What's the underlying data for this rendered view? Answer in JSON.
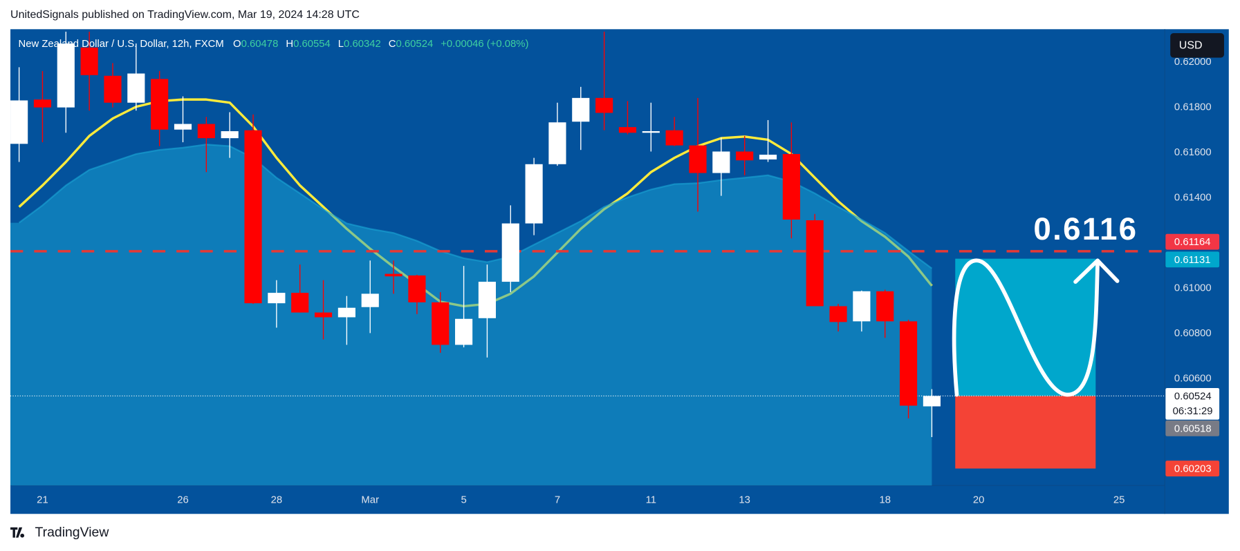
{
  "chart_data": {
    "type": "candlestick",
    "publisher_line": "UnitedSignals published on TradingView.com, Mar 19, 2024 14:28 UTC",
    "symbol": "New Zealand Dollar / U.S. Dollar, 12h, FXCM",
    "ohlc_keys": [
      "O",
      "H",
      "L",
      "C"
    ],
    "change": "+0.00046 (+0.08%)",
    "currency": "USD",
    "brand": "TradingView",
    "annotation": "0.6116",
    "countdown": "06:31:29",
    "categories": [
      null,
      "21",
      null,
      null,
      null,
      null,
      null,
      "26",
      null,
      null,
      null,
      "28",
      null,
      null,
      null,
      "Mar",
      null,
      null,
      null,
      "5",
      null,
      null,
      null,
      "7",
      null,
      null,
      null,
      "11",
      null,
      null,
      null,
      "13",
      null,
      null,
      null,
      null,
      null,
      "18",
      null,
      null,
      null,
      "20",
      null,
      null,
      null,
      null,
      null,
      "25",
      null,
      null
    ],
    "open": [
      0.61639,
      0.61835,
      0.618,
      0.62065,
      0.6194,
      0.61821,
      0.61926,
      0.61702,
      0.61727,
      0.61664,
      0.61699,
      0.60934,
      0.6098,
      0.60893,
      0.60872,
      0.60917,
      0.61064,
      0.61057,
      0.60938,
      0.6075,
      0.60868,
      0.61029,
      0.61287,
      0.61549,
      0.61737,
      0.61842,
      0.61713,
      0.61688,
      0.61699,
      0.61632,
      0.6151,
      0.61605,
      0.6157,
      0.61594,
      0.61301,
      0.60921,
      0.60854,
      0.60987,
      0.60854,
      0.60478,
      null,
      null,
      null,
      null,
      null,
      null,
      null,
      null,
      null,
      null
    ],
    "high": [
      0.61978,
      0.61961,
      0.62135,
      0.62135,
      0.61996,
      0.62083,
      0.61961,
      0.61849,
      0.61758,
      0.61779,
      0.61769,
      0.61036,
      0.61105,
      0.61036,
      0.60966,
      0.61123,
      0.61123,
      0.6106,
      0.60983,
      0.61099,
      0.61105,
      0.61367,
      0.61577,
      0.61821,
      0.61891,
      0.62135,
      0.61828,
      0.61821,
      0.61758,
      0.61842,
      0.61667,
      0.61674,
      0.61744,
      0.61734,
      0.61329,
      0.60931,
      0.6099,
      0.60994,
      0.60861,
      0.60554,
      null,
      null,
      null,
      null,
      null,
      null,
      null,
      null,
      null,
      null
    ],
    "low": [
      0.61559,
      0.61646,
      0.61688,
      0.61786,
      0.618,
      0.61786,
      0.61629,
      0.61646,
      0.61514,
      0.61577,
      0.60931,
      0.60826,
      0.60893,
      0.60774,
      0.6075,
      0.60802,
      0.60976,
      0.60886,
      0.60715,
      0.60739,
      0.60694,
      0.60983,
      0.61235,
      0.61542,
      0.61612,
      0.61699,
      0.61681,
      0.61605,
      0.61629,
      0.61339,
      0.61409,
      0.615,
      0.61559,
      0.61221,
      0.60921,
      0.60809,
      0.60809,
      0.60781,
      0.60425,
      0.60342,
      null,
      null,
      null,
      null,
      null,
      null,
      null,
      null,
      null,
      null
    ],
    "close": [
      0.61831,
      0.618,
      0.62083,
      0.61943,
      0.61821,
      0.6195,
      0.61702,
      0.61727,
      0.61664,
      0.61695,
      0.60934,
      0.6098,
      0.60893,
      0.60872,
      0.60914,
      0.60976,
      0.61053,
      0.60938,
      0.6075,
      0.60865,
      0.61029,
      0.61287,
      0.61549,
      0.61734,
      0.61842,
      0.61776,
      0.61688,
      0.61695,
      0.61632,
      0.6151,
      0.61605,
      0.61566,
      0.61591,
      0.61304,
      0.60921,
      0.60851,
      0.60987,
      0.60854,
      0.60481,
      0.60524,
      null,
      null,
      null,
      null,
      null,
      null,
      null,
      null,
      null,
      null
    ],
    "up_color": "#ffffff",
    "down_color": "#ff0000",
    "series": [
      {
        "style": "line",
        "color": "#ffeb3b",
        "values": [
          0.6136,
          0.61455,
          0.61559,
          0.61674,
          0.61751,
          0.61803,
          0.61828,
          0.61835,
          0.61835,
          0.61821,
          0.61716,
          0.61577,
          0.61455,
          0.6136,
          0.61263,
          0.61175,
          0.61095,
          0.61018,
          0.60941,
          0.60921,
          0.60931,
          0.60976,
          0.61053,
          0.61158,
          0.61263,
          0.6135,
          0.6142,
          0.61514,
          0.61577,
          0.61629,
          0.61664,
          0.61671,
          0.61657,
          0.61594,
          0.61489,
          0.61385,
          0.61297,
          0.61228,
          0.6114,
          0.61011,
          null,
          null,
          null,
          null,
          null,
          null,
          null,
          null,
          null,
          null
        ]
      },
      {
        "style": "area",
        "color": "#1aa6d6",
        "values": [
          0.6129,
          0.61367,
          0.61455,
          0.61524,
          0.61559,
          0.61594,
          0.61612,
          0.61622,
          0.61636,
          0.61629,
          0.61577,
          0.61489,
          0.6142,
          0.6135,
          0.61287,
          0.61263,
          0.61245,
          0.6121,
          0.61165,
          0.61133,
          0.61116,
          0.6114,
          0.61193,
          0.61245,
          0.61297,
          0.6136,
          0.61402,
          0.61437,
          0.61461,
          0.61465,
          0.61479,
          0.61489,
          0.615,
          0.61472,
          0.6142,
          0.6136,
          0.61304,
          0.61245,
          0.61165,
          0.61088,
          null,
          null,
          null,
          null,
          null,
          null,
          null,
          null,
          null,
          null
        ]
      }
    ],
    "horizontal_line": {
      "value": 0.61164,
      "color": "#e53935"
    },
    "position": {
      "target": 0.61131,
      "entry": 0.60524,
      "stop": 0.60203,
      "profit_color": "#00a7cc",
      "loss_color": "#f44336"
    },
    "other_price": 0.60518,
    "ylim": [
      0.60128,
      0.62146
    ],
    "yticks": [
      {
        "value": 0.606,
        "label": "0.60600"
      },
      {
        "value": 0.608,
        "label": "0.60800"
      },
      {
        "value": 0.61,
        "label": "0.61000"
      },
      {
        "value": 0.614,
        "label": "0.61400"
      },
      {
        "value": 0.616,
        "label": "0.61600"
      },
      {
        "value": 0.618,
        "label": "0.61800"
      },
      {
        "value": 0.62,
        "label": "0.62000"
      }
    ],
    "grid": false
  }
}
